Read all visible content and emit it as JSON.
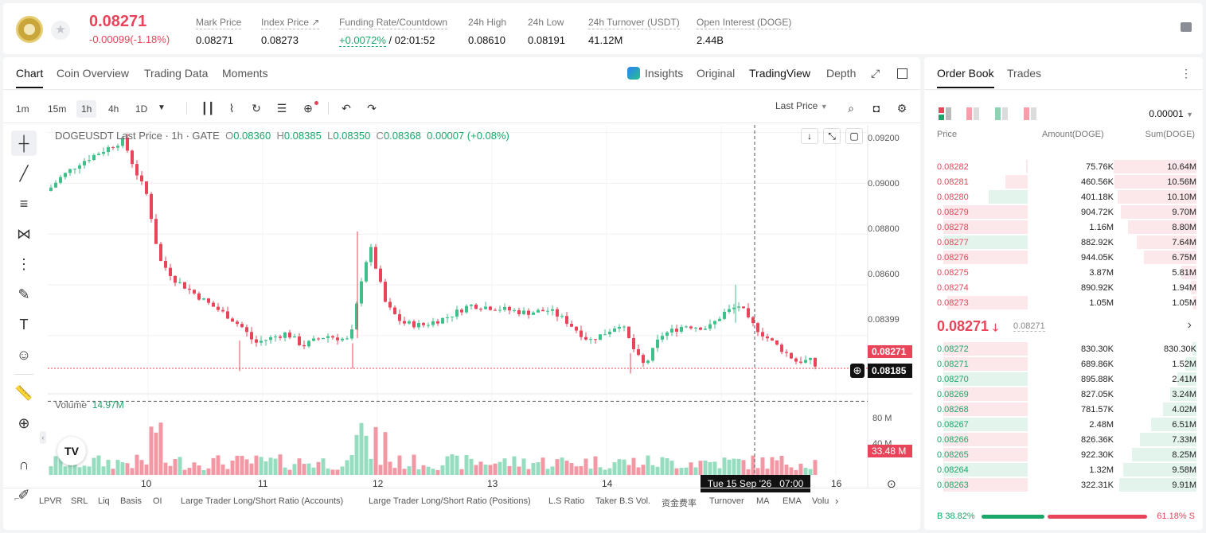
{
  "ticker": {
    "last_price": "0.08271",
    "change": "-0.00099(-1.18%)",
    "stats": [
      {
        "label": "Mark Price",
        "value": "0.08271"
      },
      {
        "label": "Index Price ↗",
        "value": "0.08273"
      },
      {
        "label": "Funding Rate/Countdown",
        "value_green": "+0.0072%",
        "value": "/ 02:01:52"
      },
      {
        "label": "24h High",
        "value": "0.08610"
      },
      {
        "label": "24h Low",
        "value": "0.08191"
      },
      {
        "label": "24h Turnover (USDT)",
        "value": "41.12M"
      },
      {
        "label": "Open Interest (DOGE)",
        "value": "2.44B"
      }
    ]
  },
  "chart_tabs": [
    "Chart",
    "Coin Overview",
    "Trading Data",
    "Moments"
  ],
  "view_tabs": [
    "Insights",
    "Original",
    "TradingView",
    "Depth"
  ],
  "timeframes": [
    "1m",
    "15m",
    "1h",
    "4h",
    "1D"
  ],
  "price_type": "Last Price",
  "legend": {
    "symbol": "DOGEUSDT Last Price · 1h · GATE",
    "o": "0.08360",
    "h": "0.08385",
    "l": "0.08350",
    "c": "0.08368",
    "chg": "0.00007 (+0.08%)"
  },
  "volume_label": "Volume",
  "volume_value": "14.97M",
  "y_ticks": [
    "0.09200",
    "0.09000",
    "0.08800",
    "0.08600",
    "0.08399"
  ],
  "vol_ticks": [
    "80 M",
    "40 M"
  ],
  "x_ticks": [
    "10",
    "11",
    "12",
    "13",
    "14",
    "16"
  ],
  "crosshair_time": "Tue 15 Sep '26   07:00",
  "last_price_tag": "0.08271",
  "cross_price_tag": "0.08185",
  "vol_tag": "33.48 M",
  "indicators": [
    "LPVR",
    "SRL",
    "Liq",
    "Basis",
    "OI",
    "Large Trader Long/Short Ratio (Accounts)",
    "Large Trader Long/Short Ratio (Positions)",
    "L.S Ratio",
    "Taker B.S Vol.",
    "资金费率",
    "Turnover",
    "MA",
    "EMA",
    "Volu"
  ],
  "orderbook": {
    "tabs": [
      "Order Book",
      "Trades"
    ],
    "precision": "0.00001",
    "headers": [
      "Price",
      "Amount(DOGE)",
      "Sum(DOGE)"
    ],
    "asks": [
      {
        "p": "0.08282",
        "a": "75.76K",
        "s": "10.64M",
        "af": 0.02,
        "sf": 1.0
      },
      {
        "p": "0.08281",
        "a": "460.56K",
        "s": "10.56M",
        "af": 0.25,
        "sf": 0.99
      },
      {
        "p": "0.08280",
        "a": "401.18K",
        "s": "10.10M",
        "af": 0.44,
        "sf": 0.95
      },
      {
        "p": "0.08279",
        "a": "904.72K",
        "s": "9.70M",
        "af": 0.95,
        "sf": 0.91
      },
      {
        "p": "0.08278",
        "a": "1.16M",
        "s": "8.80M",
        "af": 0.95,
        "sf": 0.83
      },
      {
        "p": "0.08277",
        "a": "882.92K",
        "s": "7.64M",
        "af": 0.95,
        "sf": 0.72
      },
      {
        "p": "0.08276",
        "a": "944.05K",
        "s": "6.75M",
        "af": 0.95,
        "sf": 0.63
      },
      {
        "p": "0.08275",
        "a": "3.87M",
        "s": "5.81M",
        "af": 0.0,
        "sf": 0.18
      },
      {
        "p": "0.08274",
        "a": "890.92K",
        "s": "1.94M",
        "af": 0.0,
        "sf": 0.07
      },
      {
        "p": "0.08273",
        "a": "1.05M",
        "s": "1.05M",
        "af": 0.9,
        "sf": 0.04
      }
    ],
    "mid_price": "0.08271",
    "mid_mark": "0.08271",
    "bids": [
      {
        "p": "0.08272",
        "a": "830.30K",
        "s": "830.30K",
        "af": 0.95,
        "sf": 0.05
      },
      {
        "p": "0.08271",
        "a": "689.86K",
        "s": "1.52M",
        "af": 0.95,
        "sf": 0.13
      },
      {
        "p": "0.08270",
        "a": "895.88K",
        "s": "2.41M",
        "af": 0.95,
        "sf": 0.23
      },
      {
        "p": "0.08269",
        "a": "827.05K",
        "s": "3.24M",
        "af": 0.95,
        "sf": 0.32
      },
      {
        "p": "0.08268",
        "a": "781.57K",
        "s": "4.02M",
        "af": 0.95,
        "sf": 0.4
      },
      {
        "p": "0.08267",
        "a": "2.48M",
        "s": "6.51M",
        "af": 0.95,
        "sf": 0.55
      },
      {
        "p": "0.08266",
        "a": "826.36K",
        "s": "7.33M",
        "af": 0.95,
        "sf": 0.68
      },
      {
        "p": "0.08265",
        "a": "922.30K",
        "s": "8.25M",
        "af": 0.95,
        "sf": 0.78
      },
      {
        "p": "0.08264",
        "a": "1.32M",
        "s": "9.58M",
        "af": 0.95,
        "sf": 0.88
      },
      {
        "p": "0.08263",
        "a": "322.31K",
        "s": "9.91M",
        "af": 0.95,
        "sf": 0.93
      }
    ],
    "buy_ratio": "B 38.82%",
    "sell_ratio": "61.18% S",
    "buy_frac": 0.3882
  },
  "colors": {
    "up": "#3fbf8a",
    "down": "#e8445a"
  }
}
